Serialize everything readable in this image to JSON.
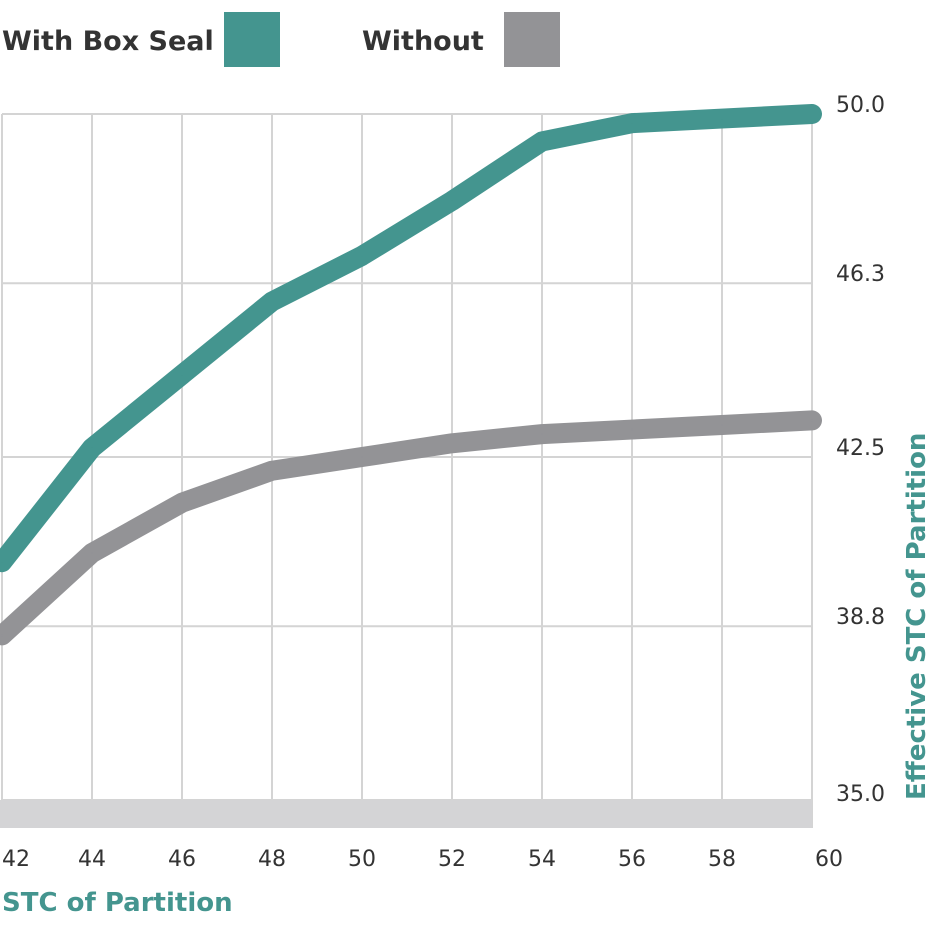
{
  "chart_data": {
    "type": "line",
    "xlabel": "STC of Partition",
    "ylabel": "Effective STC of Partition",
    "x": [
      42,
      44,
      46,
      48,
      50,
      52,
      54,
      56,
      58,
      60
    ],
    "xlim": [
      42,
      60
    ],
    "ylim": [
      35.0,
      50.0
    ],
    "yticks": [
      "35.0",
      "38.8",
      "42.5",
      "46.3",
      "50.0"
    ],
    "xticks": [
      "42",
      "44",
      "46",
      "48",
      "50",
      "52",
      "54",
      "56",
      "58",
      "60"
    ],
    "grid": true,
    "legend_position": "top-left",
    "series": [
      {
        "name": "With Box Seal",
        "color": "#44958f",
        "values": [
          40.2,
          42.7,
          44.3,
          45.9,
          46.9,
          48.1,
          49.4,
          49.8,
          49.9,
          50.0
        ]
      },
      {
        "name": "Without",
        "color": "#939396",
        "values": [
          38.6,
          40.4,
          41.5,
          42.2,
          42.5,
          42.8,
          43.0,
          43.1,
          43.2,
          43.3
        ]
      }
    ]
  },
  "colors": {
    "accent": "#44958f",
    "grid": "#d4d4d4",
    "baseline_band": "#d4d4d6",
    "text": "#333333"
  }
}
